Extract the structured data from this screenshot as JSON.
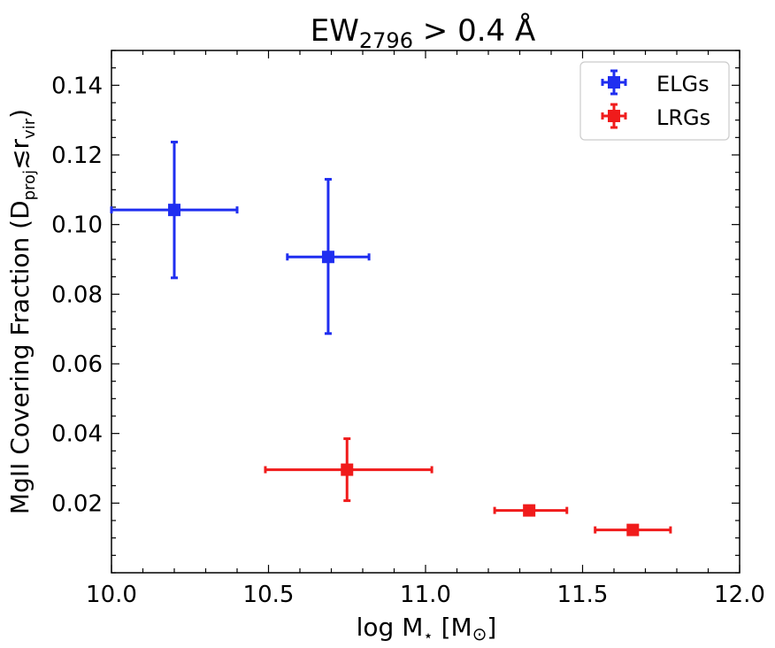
{
  "chart_data": {
    "type": "scatter",
    "title": {
      "main": "EW",
      "sub": "2796",
      "rest": " > 0.4 Å"
    },
    "xlabel": {
      "pre": "log M",
      "star": "⋆",
      "post": " [M",
      "sun": "⊙",
      "close": "]"
    },
    "ylabel": {
      "pre": "MgII Covering Fraction (D",
      "sub1": "proj",
      "mid": "≲r",
      "sub2": "vir",
      "post": ")"
    },
    "xlim": [
      10.0,
      12.0
    ],
    "ylim": [
      0.0,
      0.15
    ],
    "xticks": [
      "10.0",
      "10.5",
      "11.0",
      "11.5",
      "12.0"
    ],
    "yticks": [
      "0.02",
      "0.04",
      "0.06",
      "0.08",
      "0.10",
      "0.12",
      "0.14"
    ],
    "grid": false,
    "legend_position": "top-right",
    "series": [
      {
        "name": "ELGs",
        "color": "#1f2ef0",
        "points": [
          {
            "x": 10.2,
            "y": 0.1042,
            "xlo": 10.0,
            "xhi": 10.4,
            "ylo": 0.0847,
            "yhi": 0.1237
          },
          {
            "x": 10.69,
            "y": 0.0907,
            "xlo": 10.56,
            "xhi": 10.82,
            "ylo": 0.0687,
            "yhi": 0.113
          }
        ]
      },
      {
        "name": "LRGs",
        "color": "#f01b1b",
        "points": [
          {
            "x": 10.75,
            "y": 0.0296,
            "xlo": 10.49,
            "xhi": 11.02,
            "ylo": 0.0207,
            "yhi": 0.0385
          },
          {
            "x": 11.33,
            "y": 0.0179,
            "xlo": 11.22,
            "xhi": 11.45,
            "ylo": 0.0179,
            "yhi": 0.0179
          },
          {
            "x": 11.66,
            "y": 0.0123,
            "xlo": 11.54,
            "xhi": 11.78,
            "ylo": 0.0123,
            "yhi": 0.0123
          }
        ]
      }
    ]
  }
}
